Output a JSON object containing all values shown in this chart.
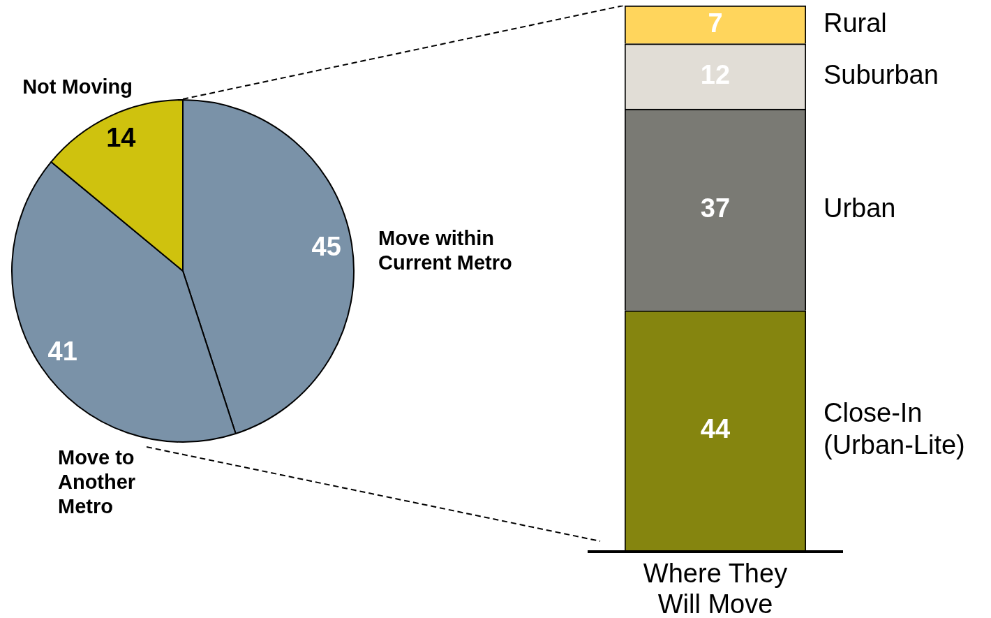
{
  "chart_data": [
    {
      "type": "pie",
      "categories": [
        "Move within Current Metro",
        "Move to Another Metro",
        "Not Moving"
      ],
      "values": [
        45,
        41,
        14
      ],
      "colors": [
        "#7a92a8",
        "#7a92a8",
        "#cfc20e"
      ],
      "data_labels": true
    },
    {
      "type": "bar",
      "stacked": true,
      "categories": [
        "Where They Will Move"
      ],
      "data_labels": true,
      "series": [
        {
          "name": "Close-In (Urban-Lite)",
          "color": "#85850f",
          "values": [
            44
          ]
        },
        {
          "name": "Urban",
          "color": "#7a7a74",
          "values": [
            37
          ]
        },
        {
          "name": "Suburban",
          "color": "#e1ddd6",
          "values": [
            12
          ]
        },
        {
          "name": "Rural",
          "color": "#ffd55c",
          "values": [
            7
          ]
        }
      ]
    }
  ]
}
